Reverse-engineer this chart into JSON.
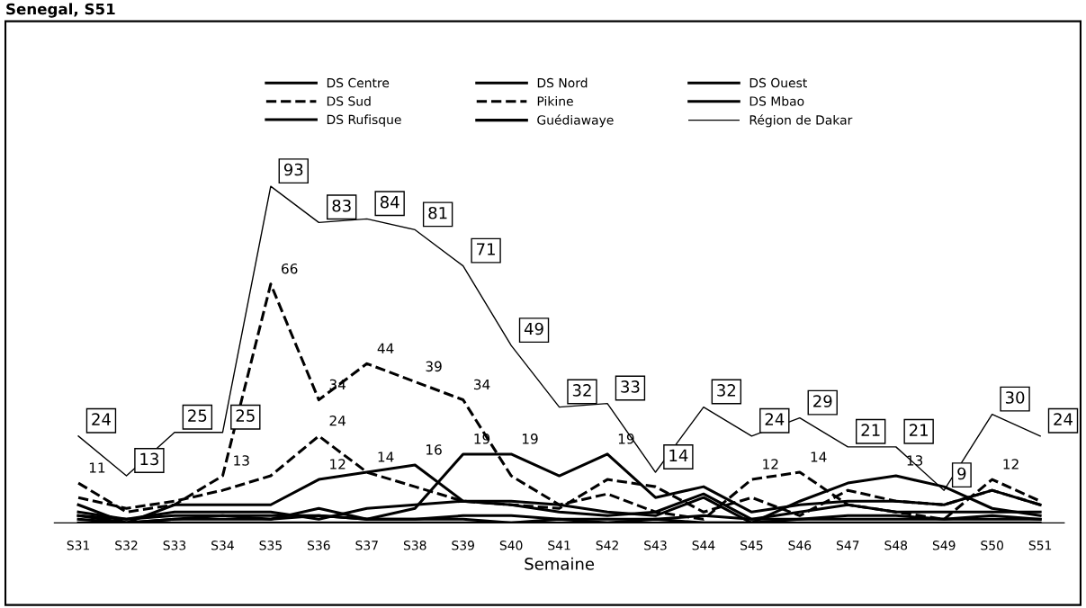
{
  "chart_data": {
    "type": "line",
    "title": "Senegal, S51",
    "xlabel": "Semaine",
    "categories": [
      "S31",
      "S32",
      "S33",
      "S34",
      "S35",
      "S36",
      "S37",
      "S38",
      "S39",
      "S40",
      "S41",
      "S42",
      "S43",
      "S44",
      "S45",
      "S46",
      "S47",
      "S48",
      "S49",
      "S50",
      "S51"
    ],
    "series": [
      {
        "name": "DS Centre",
        "color": "#000000",
        "line_style": "solid",
        "values": [
          5,
          0,
          5,
          5,
          5,
          12,
          14,
          16,
          6,
          6,
          5,
          3,
          2,
          7,
          0,
          6,
          11,
          13,
          10,
          4,
          2
        ],
        "value_labels": [
          null,
          null,
          null,
          null,
          null,
          "12",
          "14",
          "16",
          null,
          null,
          null,
          null,
          null,
          null,
          null,
          null,
          null,
          "13",
          null,
          null,
          null
        ]
      },
      {
        "name": "DS Nord",
        "color": "#000000",
        "line_style": "solid",
        "values": [
          2,
          0,
          1,
          2,
          1,
          4,
          1,
          4,
          19,
          19,
          13,
          19,
          7,
          10,
          3,
          5,
          6,
          6,
          5,
          9,
          5
        ],
        "value_labels": [
          null,
          null,
          null,
          null,
          null,
          null,
          null,
          null,
          "19",
          "19",
          null,
          "19",
          null,
          null,
          null,
          null,
          null,
          null,
          null,
          null,
          null
        ]
      },
      {
        "name": "DS Ouest",
        "color": "#000000",
        "line_style": "solid",
        "values": [
          3,
          1,
          2,
          2,
          2,
          2,
          1,
          1,
          2,
          2,
          1,
          1,
          1,
          2,
          1,
          1,
          2,
          2,
          1,
          2,
          1
        ]
      },
      {
        "name": "DS Sud",
        "color": "#000000",
        "line_style": "dashed",
        "values": [
          11,
          3,
          5,
          13,
          66,
          34,
          44,
          39,
          34,
          13,
          5,
          8,
          3,
          1,
          12,
          14,
          5,
          3,
          1,
          12,
          6
        ],
        "value_labels": [
          "11",
          null,
          null,
          "13",
          "66",
          "34",
          "44",
          "39",
          "34",
          null,
          null,
          null,
          null,
          null,
          "12",
          "14",
          null,
          null,
          null,
          "12",
          null
        ]
      },
      {
        "name": "Pikine",
        "color": "#000000",
        "line_style": "dashed",
        "values": [
          7,
          4,
          6,
          9,
          13,
          24,
          14,
          10,
          6,
          5,
          4,
          12,
          10,
          3,
          7,
          2,
          9,
          6,
          5,
          9,
          5
        ],
        "value_labels": [
          null,
          null,
          null,
          null,
          null,
          "24",
          null,
          null,
          null,
          null,
          null,
          null,
          null,
          null,
          null,
          null,
          null,
          null,
          null,
          null,
          null
        ]
      },
      {
        "name": "DS Mbao",
        "color": "#000000",
        "line_style": "solid",
        "values": [
          0,
          0,
          0,
          0,
          0,
          0,
          0,
          0,
          0,
          0,
          0,
          0,
          0,
          0,
          0,
          0,
          0,
          0,
          0,
          0,
          0
        ]
      },
      {
        "name": "DS Rufisque",
        "color": "#000000",
        "line_style": "solid",
        "values": [
          1,
          0,
          1,
          1,
          1,
          2,
          1,
          1,
          1,
          0,
          1,
          0,
          1,
          0,
          0,
          1,
          1,
          1,
          1,
          1,
          1
        ]
      },
      {
        "name": "Guédiawaye",
        "color": "#000000",
        "line_style": "solid",
        "values": [
          2,
          1,
          3,
          3,
          3,
          1,
          4,
          5,
          6,
          5,
          3,
          2,
          3,
          8,
          1,
          3,
          5,
          3,
          3,
          3,
          3
        ]
      },
      {
        "name": "Région de Dakar",
        "color": "#000000",
        "line_style": "solid",
        "values": [
          24,
          13,
          25,
          25,
          93,
          83,
          84,
          81,
          71,
          49,
          32,
          33,
          14,
          32,
          24,
          29,
          21,
          21,
          9,
          30,
          24
        ],
        "value_labels": [
          "24",
          "13",
          "25",
          "25",
          "93",
          "83",
          "84",
          "81",
          "71",
          "49",
          "32",
          "33",
          "14",
          "32",
          "24",
          "29",
          "21",
          "21",
          "9",
          "30",
          "24"
        ]
      }
    ],
    "legend": "top",
    "grid": false,
    "marker": "none"
  }
}
